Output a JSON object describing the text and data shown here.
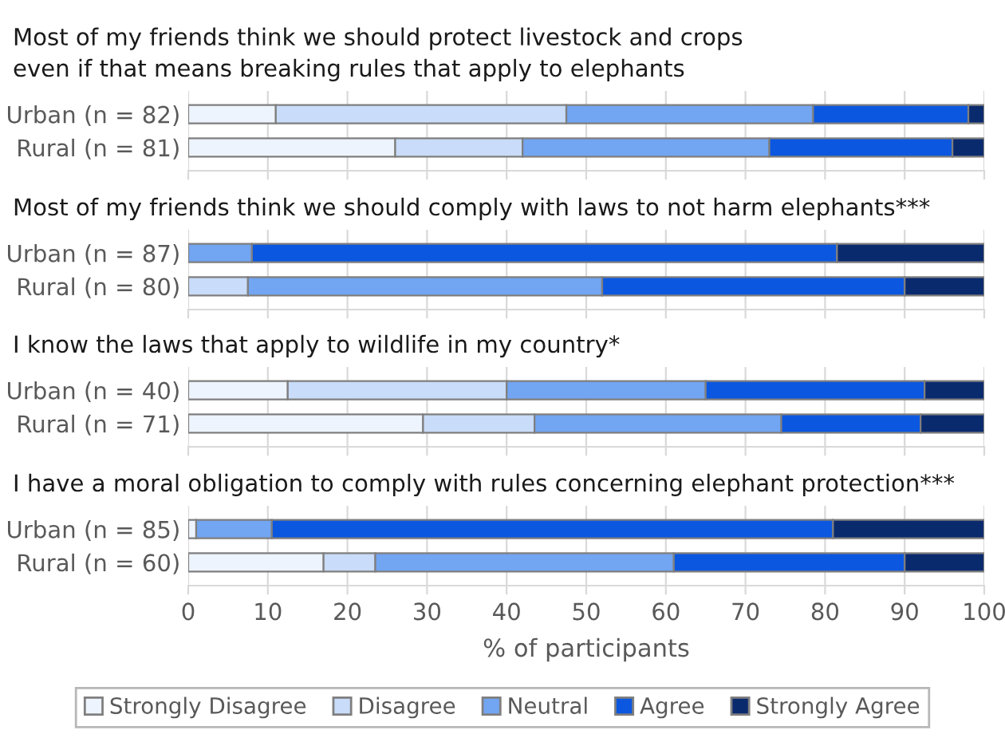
{
  "chart_data": [
    {
      "type": "bar",
      "orientation": "horizontal",
      "stacked": true,
      "title": "Most of my friends think we should protect livestock and crops\neven if that means breaking rules that apply to elephants",
      "categories": [
        "Urban (n = 82)",
        "Rural (n = 81)"
      ],
      "xlim": [
        0,
        100
      ],
      "xticks": [
        0,
        10,
        20,
        30,
        40,
        50,
        60,
        70,
        80,
        90,
        100
      ],
      "grid": "x",
      "tick_labels": "y",
      "legend": "bottom",
      "series": [
        {
          "name": "Strongly Disagree",
          "color": "#eef4fd",
          "values": [
            11,
            26
          ]
        },
        {
          "name": "Disagree",
          "color": "#c9dcf9",
          "values": [
            36.5,
            16
          ]
        },
        {
          "name": "Neutral",
          "color": "#72a5f2",
          "values": [
            31,
            31
          ]
        },
        {
          "name": "Agree",
          "color": "#0b57e0",
          "values": [
            19.5,
            23
          ]
        },
        {
          "name": "Strongly Agree",
          "color": "#0a2a6e",
          "values": [
            2,
            4
          ]
        }
      ]
    },
    {
      "type": "bar",
      "orientation": "horizontal",
      "stacked": true,
      "title": "Most of my friends think we should comply with laws to not harm elephants***",
      "categories": [
        "Urban (n = 87)",
        "Rural (n = 80)"
      ],
      "xlim": [
        0,
        100
      ],
      "xticks": [
        0,
        10,
        20,
        30,
        40,
        50,
        60,
        70,
        80,
        90,
        100
      ],
      "grid": "x",
      "tick_labels": "y",
      "series": [
        {
          "color": "#eef4fd",
          "values": [
            null,
            null
          ]
        },
        {
          "color": "#c9dcf9",
          "values": [
            null,
            7.5
          ]
        },
        {
          "color": "#72a5f2",
          "values": [
            8,
            44.5
          ]
        },
        {
          "color": "#0b57e0",
          "values": [
            73.5,
            38
          ]
        },
        {
          "color": "#0a2a6e",
          "values": [
            18.5,
            10
          ]
        }
      ]
    },
    {
      "type": "bar",
      "orientation": "horizontal",
      "stacked": true,
      "title": "I know the laws that apply to wildlife in my country*",
      "categories": [
        "Urban (n = 40)",
        "Rural (n = 71)"
      ],
      "xlim": [
        0,
        100
      ],
      "xticks": [
        0,
        10,
        20,
        30,
        40,
        50,
        60,
        70,
        80,
        90,
        100
      ],
      "grid": "x",
      "tick_labels": "y",
      "series": [
        {
          "color": "#eef4fd",
          "values": [
            12.5,
            29.5
          ]
        },
        {
          "color": "#c9dcf9",
          "values": [
            27.5,
            14
          ]
        },
        {
          "color": "#72a5f2",
          "values": [
            25,
            31
          ]
        },
        {
          "color": "#0b57e0",
          "values": [
            27.5,
            17.5
          ]
        },
        {
          "color": "#0a2a6e",
          "values": [
            7.5,
            8
          ]
        }
      ]
    },
    {
      "type": "bar",
      "orientation": "horizontal",
      "stacked": true,
      "title": "I have a moral obligation to comply with rules concerning elephant protection***",
      "categories": [
        "Urban (n = 85)",
        "Rural (n = 60)"
      ],
      "xlim": [
        0,
        100
      ],
      "xticks": [
        0,
        10,
        20,
        30,
        40,
        50,
        60,
        70,
        80,
        90,
        100
      ],
      "grid": "x",
      "xlabel": "% of participants",
      "series": [
        {
          "color": "#eef4fd",
          "values": [
            1,
            17
          ]
        },
        {
          "color": "#c9dcf9",
          "values": [
            null,
            6.5
          ]
        },
        {
          "color": "#72a5f2",
          "values": [
            9.5,
            37.5
          ]
        },
        {
          "color": "#0b57e0",
          "values": [
            70.5,
            29
          ]
        },
        {
          "color": "#0a2a6e",
          "values": [
            19,
            10
          ]
        }
      ]
    }
  ]
}
